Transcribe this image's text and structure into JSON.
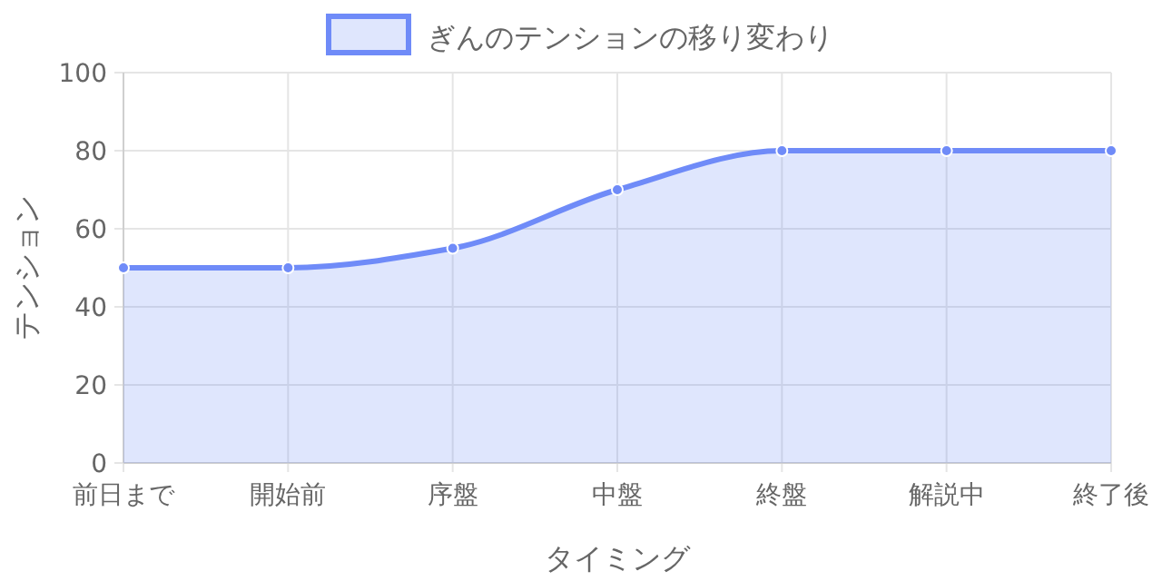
{
  "chart_data": {
    "type": "area",
    "categories": [
      "前日まで",
      "開始前",
      "序盤",
      "中盤",
      "終盤",
      "解説中",
      "終了後"
    ],
    "series": [
      {
        "name": "ぎんのテンションの移り変わり",
        "color": "#6f8bf8",
        "values": [
          50,
          50,
          55,
          70,
          80,
          80,
          80
        ]
      }
    ],
    "xlabel": "タイミング",
    "ylabel": "テンション",
    "ylim": [
      0,
      100
    ],
    "yticks": [
      0,
      20,
      40,
      60,
      80,
      100
    ],
    "grid": true,
    "legend": "top",
    "marker": "circle",
    "line_style": "solid"
  }
}
